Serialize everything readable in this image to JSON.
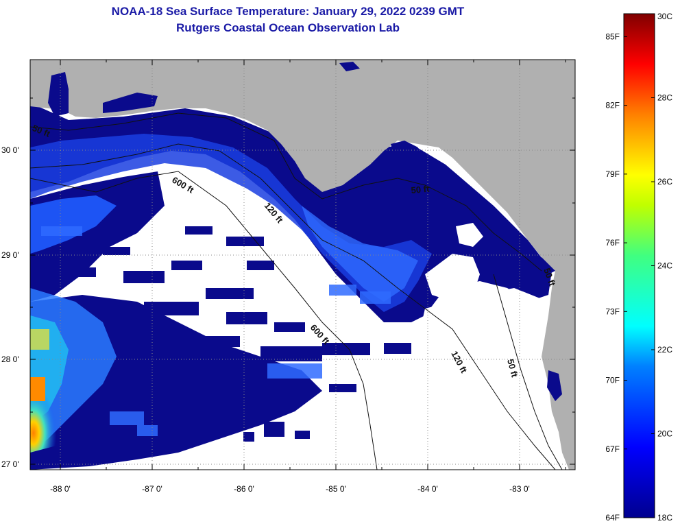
{
  "title": "NOAA-18 Sea Surface Temperature:  January 29, 2022 0239 GMT",
  "subtitle": "Rutgers Coastal Ocean Observation Lab",
  "lat_ticks": [
    "30 0'",
    "29 0'",
    "28 0'",
    "27 0'"
  ],
  "lon_ticks": [
    "-88 0'",
    "-87 0'",
    "-86 0'",
    "-85 0'",
    "-84 0'",
    "-83 0'"
  ],
  "contours": [
    "50 ft",
    "600 ft",
    "120 ft",
    "50 ft",
    "600 ft",
    "120 ft",
    "50 ft",
    "50 ft"
  ],
  "colorbar": {
    "f_labels": [
      "85F",
      "82F",
      "79F",
      "76F",
      "73F",
      "70F",
      "67F",
      "64F"
    ],
    "c_labels": [
      "30C",
      "28C",
      "26C",
      "24C",
      "22C",
      "20C",
      "18C"
    ],
    "range_f": [
      64,
      86
    ],
    "range_c": [
      18,
      30
    ]
  },
  "colors": {
    "land": "#b0b0b0",
    "cloud": "#ffffff",
    "water_cold": "#0a0a8c",
    "title": "#1a1aa6"
  }
}
